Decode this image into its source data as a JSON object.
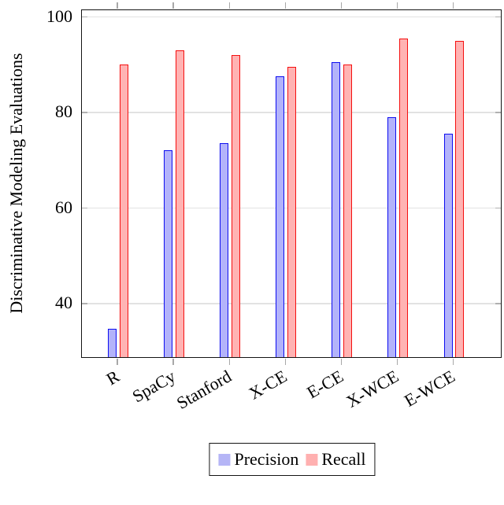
{
  "chart_data": {
    "type": "bar",
    "title": "",
    "categories": [
      "R",
      "SpaCy",
      "Stanford",
      "X-CE",
      "E-CE",
      "X-WCE",
      "E-WCE"
    ],
    "series": [
      {
        "name": "Precision",
        "values": [
          34.5,
          72,
          73.5,
          87.5,
          90.5,
          79,
          75.5
        ],
        "fill": "#b3b3fa",
        "border": "#0d0df0",
        "legend_swatch": "#b5b5f6"
      },
      {
        "name": "Recall",
        "values": [
          90,
          93,
          92,
          89.5,
          90,
          95.5,
          95
        ],
        "fill": "#ffb3b3",
        "border": "#f50f0f",
        "legend_swatch": "#ffb0b0"
      }
    ],
    "xlabel": "",
    "ylabel": "Discriminative Modeling Evaluations",
    "ylim": [
      28.5,
      101.4
    ],
    "yticks": [
      40,
      60,
      80,
      100
    ],
    "grid": true,
    "grid_color": "#e2e2e2",
    "frame_color": "#141414",
    "legend_position": "below-center",
    "x_tick_label_rotation_deg": -30
  }
}
